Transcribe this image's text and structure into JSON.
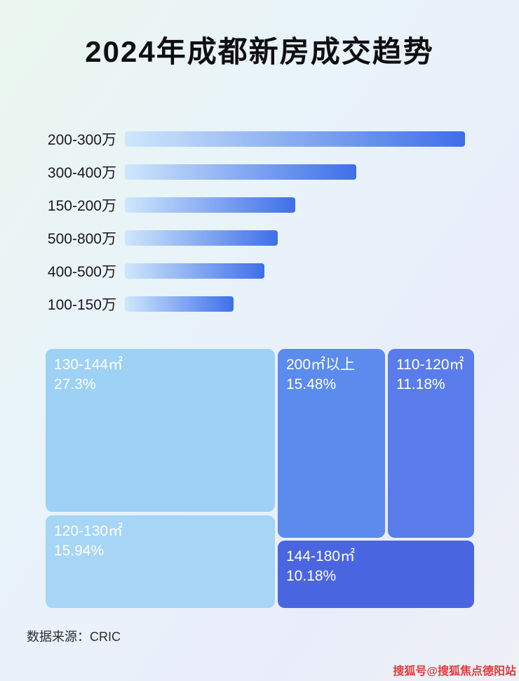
{
  "header": {
    "title": "2024年成都新房成交趋势"
  },
  "footer": {
    "source": "数据来源：CRIC",
    "watermark": "搜狐号@搜狐焦点德阳站"
  },
  "colors": {
    "bar_gradient_start": "#cfe7fb",
    "bar_gradient_end": "#3f6fe8",
    "watermark": "#e03b3b",
    "title_text": "#0f0f12"
  },
  "chart_data": [
    {
      "type": "bar",
      "orientation": "horizontal",
      "title": "2024年成都新房成交趋势",
      "categories": [
        "200-300万",
        "300-400万",
        "150-200万",
        "500-800万",
        "400-500万",
        "100-150万"
      ],
      "values": [
        100,
        68,
        50,
        45,
        41,
        32
      ],
      "value_note": "relative bar length as % of longest bar; no numeric axis labels shown in image",
      "xlabel": "",
      "ylabel": "",
      "grid": false,
      "legend": false
    },
    {
      "type": "treemap",
      "items": [
        {
          "label": "130-144㎡",
          "percent": "27.3%",
          "value": 27.3,
          "color": "#9dd1f6"
        },
        {
          "label": "200㎡以上",
          "percent": "15.48%",
          "value": 15.48,
          "color": "#5c8bee"
        },
        {
          "label": "110-120㎡",
          "percent": "11.18%",
          "value": 11.18,
          "color": "#5a7cea"
        },
        {
          "label": "120-130㎡",
          "percent": "15.94%",
          "value": 15.94,
          "color": "#a6d5f6"
        },
        {
          "label": "144-180㎡",
          "percent": "10.18%",
          "value": 10.18,
          "color": "#4a65e0"
        }
      ]
    }
  ]
}
